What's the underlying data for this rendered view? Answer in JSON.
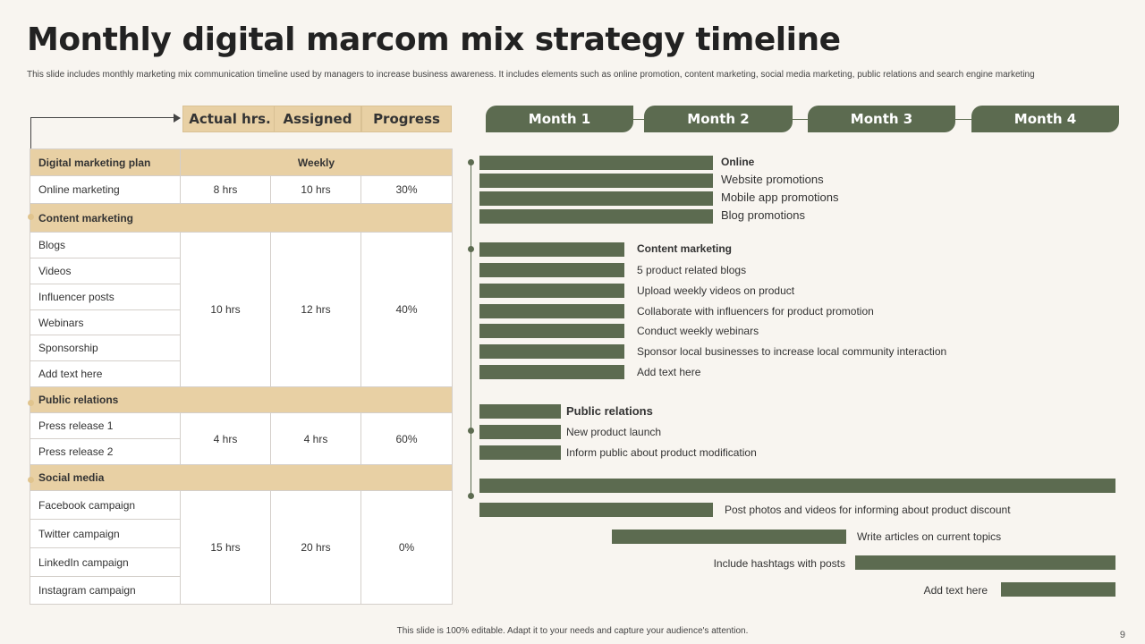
{
  "title": "Monthly digital marcom mix strategy timeline",
  "subtitle": "This slide includes monthly marketing mix communication timeline used by managers to increase business awareness. It includes elements such as online promotion, content marketing, social media marketing, public relations and search engine marketing",
  "table_tabs": [
    "Actual hrs.",
    "Assigned",
    "Progress"
  ],
  "table": {
    "header": {
      "label": "Digital marketing plan",
      "weekly": "Weekly"
    },
    "online": {
      "label": "Online marketing",
      "actual": "8 hrs",
      "assigned": "10 hrs",
      "progress": "30%"
    },
    "content": {
      "section": "Content marketing",
      "items": [
        "Blogs",
        "Videos",
        "Influencer posts",
        "Webinars",
        "Sponsorship",
        "Add text here"
      ],
      "actual": "10 hrs",
      "assigned": "12 hrs",
      "progress": "40%"
    },
    "pr": {
      "section": "Public relations",
      "items": [
        "Press release 1",
        "Press release 2"
      ],
      "actual": "4 hrs",
      "assigned": "4 hrs",
      "progress": "60%"
    },
    "social": {
      "section": "Social media",
      "items": [
        "Facebook campaign",
        "Twitter campaign",
        "LinkedIn campaign",
        "Instagram campaign"
      ],
      "actual": "15 hrs",
      "assigned": "20 hrs",
      "progress": "0%"
    }
  },
  "months": [
    "Month 1",
    "Month 2",
    "Month 3",
    "Month 4"
  ],
  "timeline": {
    "online": [
      "Online",
      "Website promotions",
      "Mobile app promotions",
      "Blog promotions"
    ],
    "content": [
      "Content marketing",
      "5 product related blogs",
      "Upload weekly videos on product",
      "Collaborate with influencers for product promotion",
      "Conduct weekly webinars",
      "Sponsor local businesses to increase local community interaction",
      "Add text here"
    ],
    "pr": [
      "Public relations",
      "New product launch",
      "Inform public about product modification"
    ],
    "social": [
      "Post photos and videos for informing about product discount",
      "Write articles on current topics",
      "Include hashtags with posts",
      "Add text here"
    ]
  },
  "footer": "This slide is 100% editable. Adapt it to your needs and capture your audience's attention.",
  "page_number": "9",
  "colors": {
    "bar": "#5c6b50",
    "header": "#e8d0a4",
    "background": "#f8f5f0"
  }
}
